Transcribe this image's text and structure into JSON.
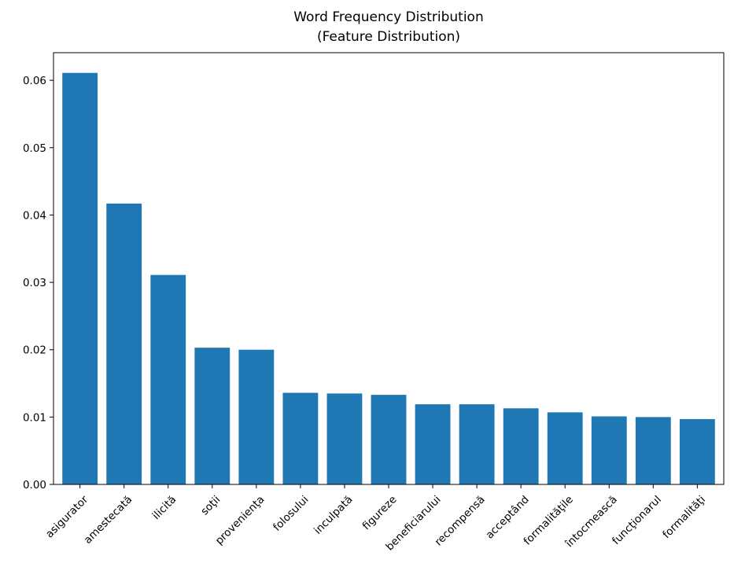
{
  "chart_data": {
    "type": "bar",
    "title": [
      "Word Frequency Distribution",
      "(Feature Distribution)"
    ],
    "xlabel": "",
    "ylabel": "",
    "categories": [
      "asigurator",
      "amestecată",
      "ilicită",
      "soţii",
      "provenienţa",
      "folosului",
      "inculpată",
      "figureze",
      "beneficiarului",
      "recompensă",
      "acceptând",
      "formalităţile",
      "întocmească",
      "funcţionarul",
      "formalităţi"
    ],
    "values": [
      0.0611,
      0.0417,
      0.0311,
      0.0203,
      0.02,
      0.0136,
      0.0135,
      0.0133,
      0.0119,
      0.0119,
      0.0113,
      0.0107,
      0.0101,
      0.01,
      0.0097
    ],
    "ylim": [
      0,
      0.0641
    ],
    "yticks": [
      0.0,
      0.01,
      0.02,
      0.03,
      0.04,
      0.05,
      0.06
    ],
    "ytick_labels": [
      "0.00",
      "0.01",
      "0.02",
      "0.03",
      "0.04",
      "0.05",
      "0.06"
    ],
    "bar_color": "#1f77b4",
    "grid": false,
    "legend": "none"
  }
}
